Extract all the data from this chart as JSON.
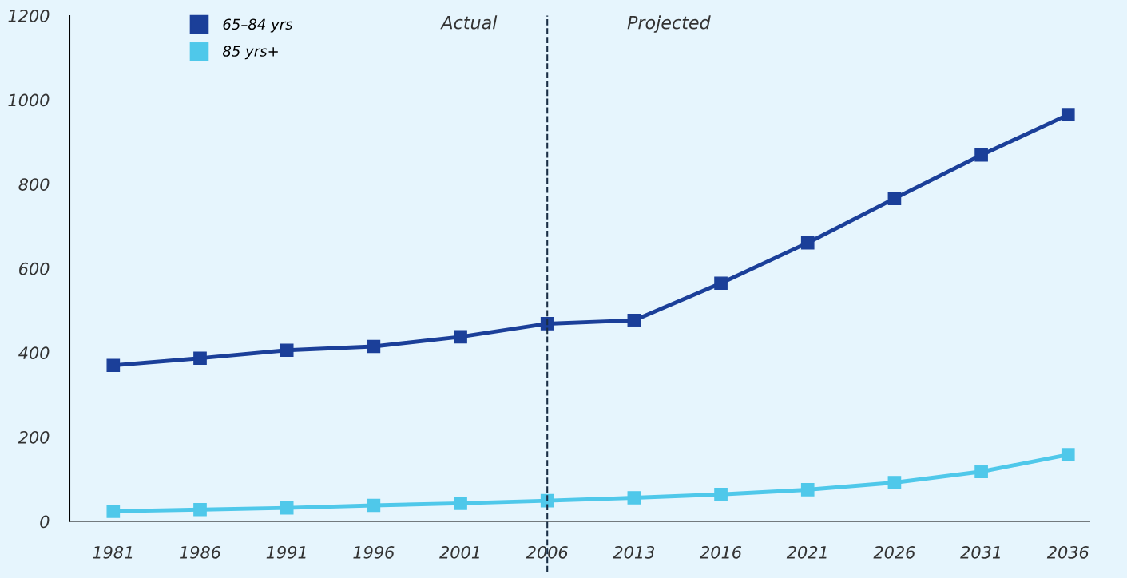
{
  "chart_data": {
    "type": "line",
    "categories": [
      "1981",
      "1986",
      "1991",
      "1996",
      "2001",
      "2006",
      "2013",
      "2016",
      "2021",
      "2026",
      "2031",
      "2036"
    ],
    "series": [
      {
        "name": "65–84 yrs",
        "color": "#1b3f99",
        "values": [
          370,
          387,
          406,
          415,
          438,
          469,
          477,
          565,
          661,
          766,
          869,
          965
        ]
      },
      {
        "name": "85 yrs+",
        "color": "#4fc8ea",
        "values": [
          24,
          28,
          32,
          38,
          43,
          49,
          56,
          64,
          75,
          92,
          118,
          158
        ]
      }
    ],
    "ylim": [
      0,
      1200
    ],
    "yticks": [
      0,
      200,
      400,
      600,
      800,
      1000,
      1200
    ],
    "ref_lines": [
      {
        "axis": "x",
        "value": "2006",
        "color": "#1a2e45",
        "line_style": "dashed"
      }
    ],
    "annotations": [
      "Actual",
      "Projected"
    ],
    "legend": "top left",
    "marker": "square",
    "line_style": "solid",
    "grid": false
  }
}
